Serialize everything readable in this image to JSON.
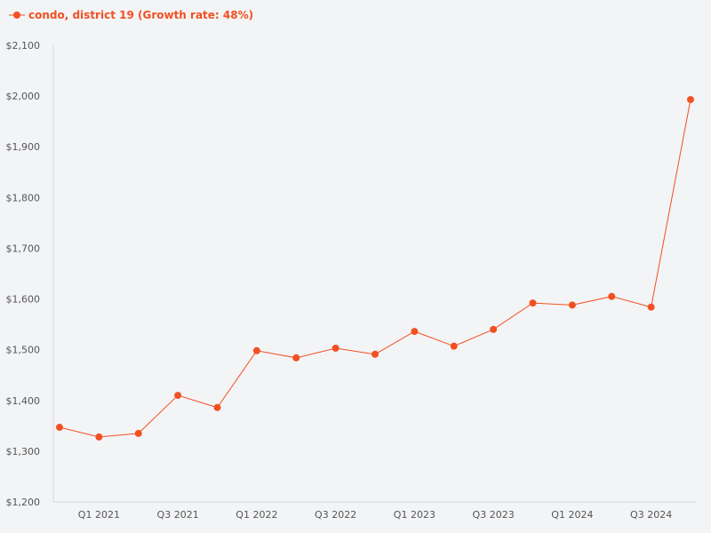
{
  "chart_data": {
    "type": "line",
    "title": "",
    "xlabel": "",
    "ylabel": "",
    "x": [
      "Q4 2020",
      "Q1 2021",
      "Q2 2021",
      "Q3 2021",
      "Q4 2021",
      "Q1 2022",
      "Q2 2022",
      "Q3 2022",
      "Q4 2022",
      "Q1 2023",
      "Q2 2023",
      "Q3 2023",
      "Q4 2023",
      "Q1 2024",
      "Q2 2024",
      "Q3 2024",
      "Q4 2024"
    ],
    "x_tick_labels": [
      "Q1 2021",
      "Q3 2021",
      "Q1 2022",
      "Q3 2022",
      "Q1 2023",
      "Q3 2023",
      "Q1 2024",
      "Q3 2024"
    ],
    "ylim": [
      1200,
      2100
    ],
    "y_ticks": [
      1200,
      1300,
      1400,
      1500,
      1600,
      1700,
      1800,
      1900,
      2000,
      2100
    ],
    "y_tick_labels": [
      "$1,200",
      "$1,300",
      "$1,400",
      "$1,500",
      "$1,600",
      "$1,700",
      "$1,800",
      "$1,900",
      "$2,000",
      "$2,100"
    ],
    "series": [
      {
        "name": "condo, district 19 (Growth rate: 48%)",
        "color": "#f25022",
        "values": [
          1347,
          1328,
          1335,
          1410,
          1386,
          1498,
          1484,
          1503,
          1491,
          1536,
          1507,
          1540,
          1592,
          1588,
          1605,
          1584,
          1993
        ]
      }
    ],
    "legend": "top-left",
    "grid": false
  }
}
